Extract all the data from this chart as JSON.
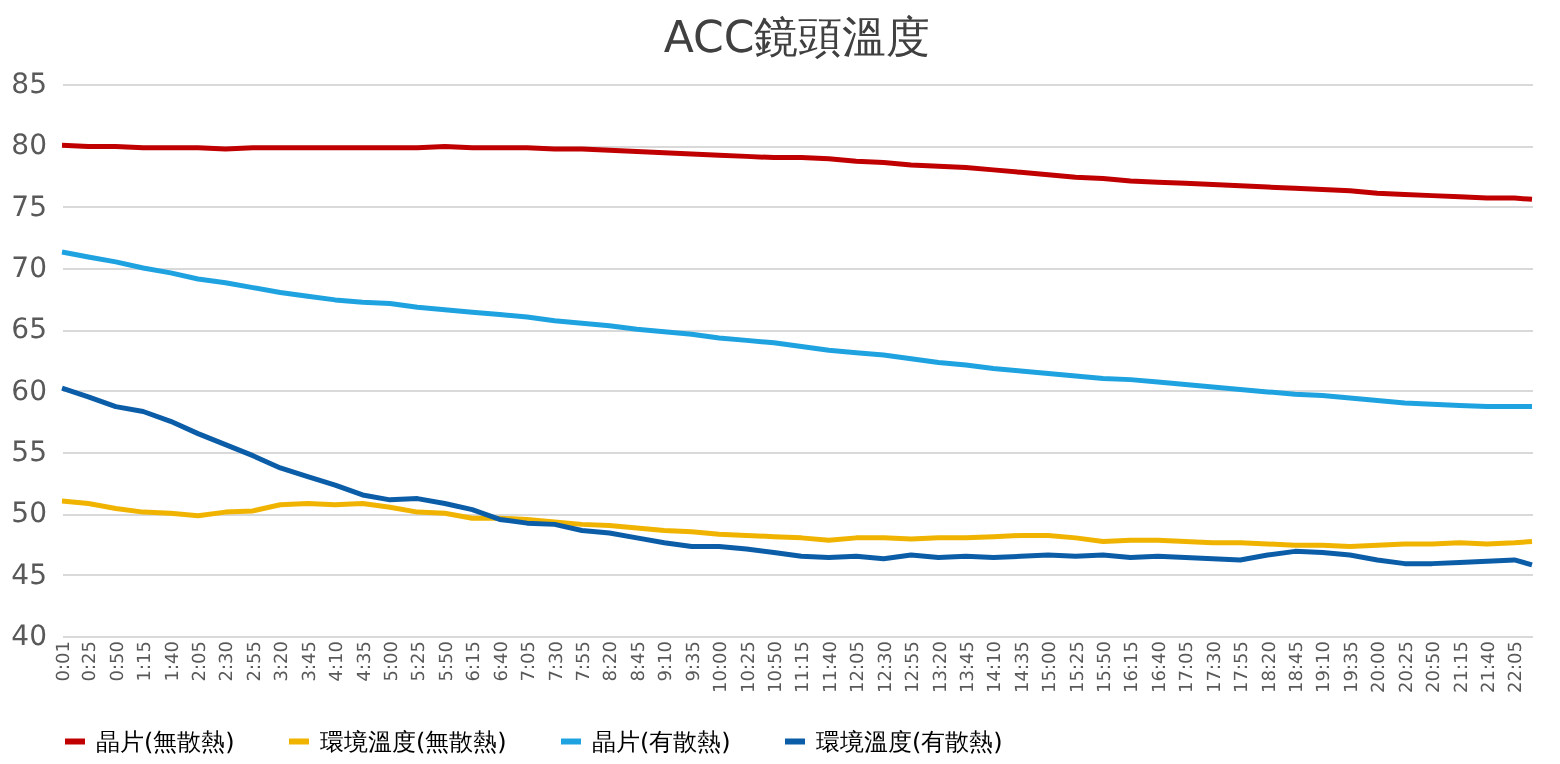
{
  "chart_data": {
    "type": "line",
    "title": "ACC鏡頭溫度",
    "x": [
      0.0167,
      0.4167,
      0.8333,
      1.25,
      1.6667,
      2.0833,
      2.5,
      2.9167,
      3.3333,
      3.75,
      4.1667,
      4.5833,
      5,
      5.4167,
      5.8333,
      6.25,
      6.6667,
      7.0833,
      7.5,
      7.9167,
      8.3333,
      8.75,
      9.1667,
      9.5833,
      10,
      10.4167,
      10.8333,
      11.25,
      11.6667,
      12.0833,
      12.5,
      12.9167,
      13.3333,
      13.75,
      14.1667,
      14.5833,
      15,
      15.4167,
      15.8333,
      16.25,
      16.6667,
      17.0833,
      17.5,
      17.9167,
      18.3333,
      18.75,
      19.1667,
      19.5833,
      20,
      20.4167,
      20.8333,
      21.25,
      21.6667,
      22.0833,
      22.35
    ],
    "series": [
      {
        "name": "晶片(無散熱)",
        "color": "#c00000",
        "values": [
          80,
          79.9,
          79.9,
          79.8,
          79.8,
          79.8,
          79.7,
          79.8,
          79.8,
          79.8,
          79.8,
          79.8,
          79.8,
          79.8,
          79.9,
          79.8,
          79.8,
          79.8,
          79.7,
          79.7,
          79.6,
          79.5,
          79.4,
          79.3,
          79.2,
          79.1,
          79,
          79,
          78.9,
          78.7,
          78.6,
          78.4,
          78.3,
          78.2,
          78,
          77.8,
          77.6,
          77.4,
          77.3,
          77.1,
          77,
          76.9,
          76.8,
          76.7,
          76.6,
          76.5,
          76.4,
          76.3,
          76.1,
          76,
          75.9,
          75.8,
          75.7,
          75.7,
          75.6
        ]
      },
      {
        "name": "環境溫度(無散熱)",
        "color": "#f0b400",
        "values": [
          51,
          50.8,
          50.4,
          50.1,
          50,
          49.8,
          50.1,
          50.2,
          50.7,
          50.8,
          50.7,
          50.8,
          50.5,
          50.1,
          50,
          49.6,
          49.6,
          49.5,
          49.3,
          49.1,
          49,
          48.8,
          48.6,
          48.5,
          48.3,
          48.2,
          48.1,
          48,
          47.8,
          48,
          48,
          47.9,
          48,
          48,
          48.1,
          48.2,
          48.2,
          48,
          47.7,
          47.8,
          47.8,
          47.7,
          47.6,
          47.6,
          47.5,
          47.4,
          47.4,
          47.3,
          47.4,
          47.5,
          47.5,
          47.6,
          47.5,
          47.6,
          47.7
        ]
      },
      {
        "name": "晶片(有散熱)",
        "color": "#1fa3e0",
        "values": [
          71.3,
          70.9,
          70.5,
          70,
          69.6,
          69.1,
          68.8,
          68.4,
          68,
          67.7,
          67.4,
          67.2,
          67.1,
          66.8,
          66.6,
          66.4,
          66.2,
          66,
          65.7,
          65.5,
          65.3,
          65,
          64.8,
          64.6,
          64.3,
          64.1,
          63.9,
          63.6,
          63.3,
          63.1,
          62.9,
          62.6,
          62.3,
          62.1,
          61.8,
          61.6,
          61.4,
          61.2,
          61,
          60.9,
          60.7,
          60.5,
          60.3,
          60.1,
          59.9,
          59.7,
          59.6,
          59.4,
          59.2,
          59,
          58.9,
          58.8,
          58.7,
          58.7,
          58.7
        ]
      },
      {
        "name": "環境溫度(有散熱)",
        "color": "#0b5da8",
        "values": [
          60.2,
          59.5,
          58.7,
          58.3,
          57.5,
          56.5,
          55.6,
          54.7,
          53.7,
          53,
          52.3,
          51.5,
          51.1,
          51.2,
          50.8,
          50.3,
          49.5,
          49.2,
          49.1,
          48.6,
          48.4,
          48,
          47.6,
          47.3,
          47.3,
          47.1,
          46.8,
          46.5,
          46.4,
          46.5,
          46.3,
          46.6,
          46.4,
          46.5,
          46.4,
          46.5,
          46.6,
          46.5,
          46.6,
          46.4,
          46.5,
          46.4,
          46.3,
          46.2,
          46.6,
          46.9,
          46.8,
          46.6,
          46.2,
          45.9,
          45.9,
          46,
          46.1,
          46.2,
          45.8
        ]
      }
    ],
    "xlim": [
      0.0167,
      22.35
    ],
    "xticks": [
      {
        "value": 0.0167,
        "label": "0:01"
      },
      {
        "value": 0.4167,
        "label": "0:25"
      },
      {
        "value": 0.8333,
        "label": "0:50"
      },
      {
        "value": 1.25,
        "label": "1:15"
      },
      {
        "value": 1.6667,
        "label": "1:40"
      },
      {
        "value": 2.0833,
        "label": "2:05"
      },
      {
        "value": 2.5,
        "label": "2:30"
      },
      {
        "value": 2.9167,
        "label": "2:55"
      },
      {
        "value": 3.3333,
        "label": "3:20"
      },
      {
        "value": 3.75,
        "label": "3:45"
      },
      {
        "value": 4.1667,
        "label": "4:10"
      },
      {
        "value": 4.5833,
        "label": "4:35"
      },
      {
        "value": 5,
        "label": "5:00"
      },
      {
        "value": 5.4167,
        "label": "5:25"
      },
      {
        "value": 5.8333,
        "label": "5:50"
      },
      {
        "value": 6.25,
        "label": "6:15"
      },
      {
        "value": 6.6667,
        "label": "6:40"
      },
      {
        "value": 7.0833,
        "label": "7:05"
      },
      {
        "value": 7.5,
        "label": "7:30"
      },
      {
        "value": 7.9167,
        "label": "7:55"
      },
      {
        "value": 8.3333,
        "label": "8:20"
      },
      {
        "value": 8.75,
        "label": "8:45"
      },
      {
        "value": 9.1667,
        "label": "9:10"
      },
      {
        "value": 9.5833,
        "label": "9:35"
      },
      {
        "value": 10,
        "label": "10:00"
      },
      {
        "value": 10.4167,
        "label": "10:25"
      },
      {
        "value": 10.8333,
        "label": "10:50"
      },
      {
        "value": 11.25,
        "label": "11:15"
      },
      {
        "value": 11.6667,
        "label": "11:40"
      },
      {
        "value": 12.0833,
        "label": "12:05"
      },
      {
        "value": 12.5,
        "label": "12:30"
      },
      {
        "value": 12.9167,
        "label": "12:55"
      },
      {
        "value": 13.3333,
        "label": "13:20"
      },
      {
        "value": 13.75,
        "label": "13:45"
      },
      {
        "value": 14.1667,
        "label": "14:10"
      },
      {
        "value": 14.5833,
        "label": "14:35"
      },
      {
        "value": 15,
        "label": "15:00"
      },
      {
        "value": 15.4167,
        "label": "15:25"
      },
      {
        "value": 15.8333,
        "label": "15:50"
      },
      {
        "value": 16.25,
        "label": "16:15"
      },
      {
        "value": 16.6667,
        "label": "16:40"
      },
      {
        "value": 17.0833,
        "label": "17:05"
      },
      {
        "value": 17.5,
        "label": "17:30"
      },
      {
        "value": 17.9167,
        "label": "17:55"
      },
      {
        "value": 18.3333,
        "label": "18:20"
      },
      {
        "value": 18.75,
        "label": "18:45"
      },
      {
        "value": 19.1667,
        "label": "19:10"
      },
      {
        "value": 19.5833,
        "label": "19:35"
      },
      {
        "value": 20,
        "label": "20:00"
      },
      {
        "value": 20.4167,
        "label": "20:25"
      },
      {
        "value": 20.8333,
        "label": "20:50"
      },
      {
        "value": 21.25,
        "label": "21:15"
      },
      {
        "value": 21.6667,
        "label": "21:40"
      },
      {
        "value": 22.0833,
        "label": "22:05"
      }
    ],
    "ylim": [
      40,
      85
    ],
    "yticks": [
      40,
      45,
      50,
      55,
      60,
      65,
      70,
      75,
      80,
      85
    ],
    "grid": "y",
    "legend": "bottom",
    "marker": "none",
    "line_style": "solid"
  }
}
